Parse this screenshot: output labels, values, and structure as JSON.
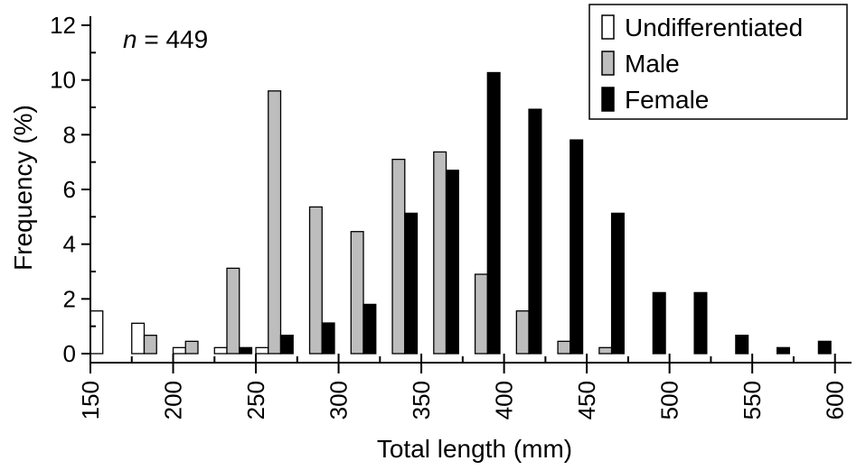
{
  "chart_data": {
    "type": "bar",
    "title": "",
    "xlabel": "Total length (mm)",
    "ylabel": "Frequency (%)",
    "annotation": {
      "italic": "n",
      "rest": " = 449"
    },
    "x_tick_labels": [
      "150",
      "200",
      "250",
      "300",
      "350",
      "400",
      "450",
      "500",
      "550",
      "600"
    ],
    "y_tick_labels": [
      "0",
      "2",
      "4",
      "6",
      "8",
      "10",
      "12"
    ],
    "ylim": [
      0,
      12
    ],
    "xlim": [
      150,
      610
    ],
    "bin_width": 25,
    "grid": false,
    "legend_position": "top-right",
    "categories": [
      150,
      175,
      200,
      225,
      250,
      275,
      300,
      325,
      350,
      375,
      400,
      425,
      450,
      475,
      500,
      525,
      550,
      575
    ],
    "series": [
      {
        "name": "Undifferentiated",
        "color": "#ffffff",
        "values": [
          1.56,
          1.11,
          0.22,
          0.22,
          0.22,
          0,
          0,
          0,
          0,
          0,
          0,
          0,
          0,
          0,
          0,
          0,
          0,
          0
        ]
      },
      {
        "name": "Male",
        "color": "#bdbdbd",
        "values": [
          0,
          0.67,
          0.45,
          3.12,
          9.6,
          5.36,
          4.46,
          7.1,
          7.37,
          2.9,
          1.56,
          0.45,
          0.22,
          0,
          0,
          0,
          0,
          0
        ]
      },
      {
        "name": "Female",
        "color": "#000000",
        "values": [
          0,
          0,
          0,
          0.22,
          0.67,
          1.12,
          1.8,
          5.13,
          6.7,
          10.27,
          8.93,
          7.81,
          5.13,
          2.23,
          2.23,
          0.67,
          0.22,
          0.45
        ]
      }
    ]
  }
}
